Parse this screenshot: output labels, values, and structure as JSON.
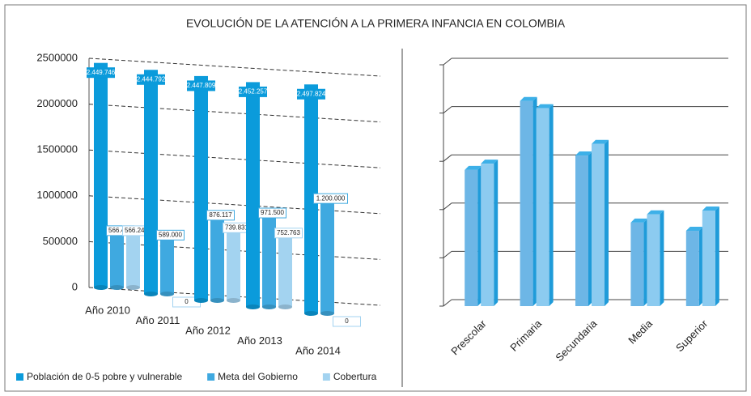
{
  "chart_data": [
    {
      "type": "bar3d",
      "title": "EVOLUCIÓN DE LA ATENCIÓN A LA PRIMERA INFANCIA EN COLOMBIA",
      "categories": [
        "Año 2010",
        "Año 2011",
        "Año 2012",
        "Año 2013",
        "Año 2014"
      ],
      "series": [
        {
          "name": "Población de 0-5 pobre y vulnerable",
          "color": "#0b9bdb",
          "values": [
            2449746,
            2444792,
            2447809,
            2452257,
            2497824
          ],
          "value_labels": [
            "2.449.746",
            "2.444.792",
            "2.447.809",
            "2.452.257",
            "2.497.824"
          ]
        },
        {
          "name": "Meta del Gobierno",
          "color": "#3fa9e0",
          "values": [
            566429,
            589000,
            876117,
            971500,
            1200000
          ],
          "value_labels": [
            "566.429",
            "589.000",
            "876.117",
            "971.500",
            "1.200.000"
          ]
        },
        {
          "name": "Cobertura",
          "color": "#a3d3f0",
          "values": [
            566243,
            0,
            739831,
            752763,
            0
          ],
          "value_labels": [
            "566.243",
            "0",
            "739.831",
            "752.763",
            "0"
          ]
        }
      ],
      "ylim": [
        0,
        2500000
      ],
      "yticks": [
        0,
        500000,
        1000000,
        1500000,
        2000000,
        2500000
      ],
      "grid": true,
      "legend": "bottom"
    },
    {
      "type": "bar",
      "categories": [
        "Prescolar",
        "Primaria",
        "Secundaria",
        "Media",
        "Superior"
      ],
      "series": [
        {
          "color": "#6db6e6",
          "values": [
            2.82,
            4.25,
            3.12,
            1.73,
            1.56
          ]
        },
        {
          "color": "#8ccbf0",
          "values": [
            2.95,
            4.1,
            3.36,
            1.9,
            1.98
          ]
        }
      ],
      "ylim": [
        0,
        5
      ],
      "yticks": [
        0,
        1,
        2,
        3,
        4,
        5
      ],
      "grid": true
    }
  ]
}
